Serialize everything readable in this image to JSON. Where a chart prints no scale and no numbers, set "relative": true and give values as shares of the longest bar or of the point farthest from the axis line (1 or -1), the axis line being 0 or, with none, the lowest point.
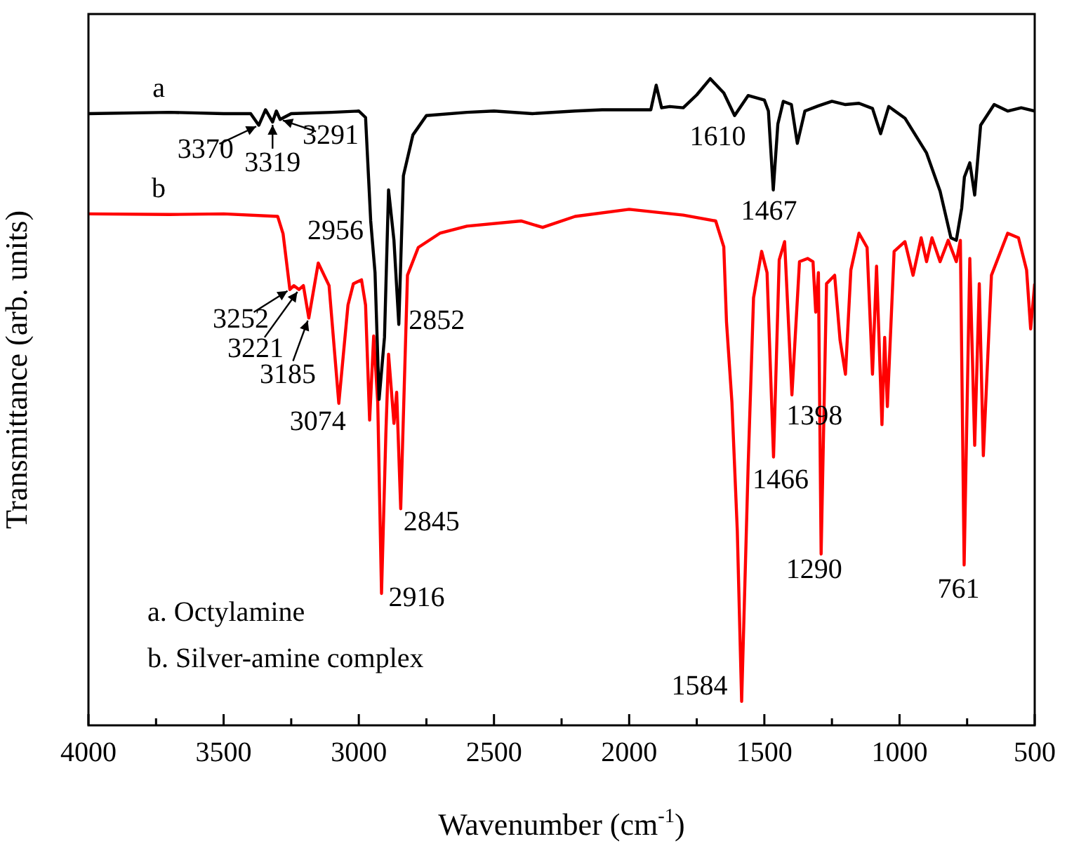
{
  "chart_data": {
    "type": "line",
    "xlabel": "Wavenumber (cm$^{-1}$)",
    "ylabel": "Transmittance (arb. units)",
    "relative": true,
    "xlim": [
      4000,
      500
    ],
    "xticks": [
      4000,
      {
        "value": 3750,
        "label": null
      },
      3500,
      {
        "value": 3250,
        "label": null
      },
      3000,
      {
        "value": 2750,
        "label": null
      },
      2500,
      {
        "value": 2250,
        "label": null
      },
      2000,
      {
        "value": 1750,
        "label": null
      },
      1500,
      {
        "value": 1250,
        "label": null
      },
      1000,
      {
        "value": 750,
        "label": null
      },
      500
    ],
    "grid": false,
    "legend": false,
    "marker": "none",
    "line_style": "solid",
    "series": [
      {
        "name": "a",
        "color": "#000000",
        "x": [
          4000,
          3700,
          3500,
          3400,
          3370,
          3345,
          3319,
          3305,
          3291,
          3250,
          3100,
          3000,
          2975,
          2956,
          2940,
          2925,
          2905,
          2890,
          2870,
          2852,
          2835,
          2800,
          2750,
          2600,
          2500,
          2358,
          2200,
          2100,
          1950,
          1920,
          1900,
          1880,
          1850,
          1800,
          1750,
          1700,
          1650,
          1610,
          1560,
          1500,
          1485,
          1467,
          1450,
          1430,
          1400,
          1378,
          1350,
          1300,
          1250,
          1200,
          1150,
          1100,
          1070,
          1040,
          980,
          900,
          850,
          810,
          790,
          770,
          760,
          740,
          722,
          700,
          650,
          600,
          550,
          500
        ],
        "values": [
          0.946,
          0.948,
          0.946,
          0.946,
          0.928,
          0.952,
          0.933,
          0.95,
          0.937,
          0.946,
          0.948,
          0.95,
          0.94,
          0.78,
          0.7,
          0.504,
          0.6,
          0.828,
          0.75,
          0.62,
          0.85,
          0.913,
          0.943,
          0.948,
          0.95,
          0.946,
          0.95,
          0.952,
          0.952,
          0.952,
          0.99,
          0.955,
          0.957,
          0.955,
          0.975,
          1.0,
          0.978,
          0.943,
          0.974,
          0.967,
          0.95,
          0.828,
          0.93,
          0.965,
          0.96,
          0.9,
          0.95,
          0.958,
          0.965,
          0.96,
          0.962,
          0.954,
          0.915,
          0.957,
          0.939,
          0.885,
          0.826,
          0.754,
          0.75,
          0.8,
          0.848,
          0.87,
          0.82,
          0.928,
          0.96,
          0.95,
          0.955,
          0.95
        ]
      },
      {
        "name": "b",
        "color": "#ff0000",
        "x": [
          4000,
          3700,
          3500,
          3300,
          3280,
          3255,
          3240,
          3221,
          3205,
          3185,
          3150,
          3110,
          3074,
          3040,
          3020,
          2990,
          2975,
          2960,
          2945,
          2930,
          2916,
          2900,
          2890,
          2870,
          2860,
          2845,
          2820,
          2780,
          2700,
          2600,
          2400,
          2320,
          2200,
          2000,
          1800,
          1680,
          1650,
          1640,
          1620,
          1600,
          1584,
          1560,
          1540,
          1510,
          1490,
          1466,
          1445,
          1425,
          1398,
          1370,
          1340,
          1320,
          1310,
          1300,
          1290,
          1270,
          1240,
          1220,
          1200,
          1180,
          1150,
          1120,
          1100,
          1085,
          1065,
          1055,
          1045,
          1020,
          980,
          950,
          920,
          900,
          880,
          850,
          820,
          790,
          775,
          761,
          740,
          722,
          705,
          690,
          660,
          600,
          560,
          530,
          515,
          500
        ],
        "values": [
          0.791,
          0.79,
          0.791,
          0.787,
          0.76,
          0.674,
          0.68,
          0.674,
          0.68,
          0.63,
          0.715,
          0.68,
          0.498,
          0.65,
          0.683,
          0.689,
          0.65,
          0.472,
          0.602,
          0.5,
          0.204,
          0.45,
          0.574,
          0.467,
          0.515,
          0.335,
          0.696,
          0.739,
          0.761,
          0.772,
          0.78,
          0.77,
          0.787,
          0.798,
          0.789,
          0.78,
          0.74,
          0.624,
          0.5,
          0.3,
          0.037,
          0.4,
          0.661,
          0.733,
          0.7,
          0.415,
          0.72,
          0.748,
          0.511,
          0.717,
          0.722,
          0.717,
          0.639,
          0.7,
          0.265,
          0.683,
          0.696,
          0.596,
          0.543,
          0.704,
          0.761,
          0.739,
          0.543,
          0.71,
          0.465,
          0.6,
          0.493,
          0.733,
          0.748,
          0.696,
          0.754,
          0.717,
          0.754,
          0.717,
          0.75,
          0.717,
          0.75,
          0.248,
          0.722,
          0.433,
          0.683,
          0.417,
          0.696,
          0.761,
          0.754,
          0.704,
          0.613,
          0.683
        ]
      }
    ],
    "annotations": [
      {
        "text": "3370",
        "x": 3370,
        "y": 0.928
      },
      {
        "text": "3319",
        "x": 3319,
        "y": 0.933
      },
      {
        "text": "3291",
        "x": 3291,
        "y": 0.937
      },
      {
        "text": "1610",
        "x": 1610,
        "y": 0.943
      },
      {
        "text": "1467",
        "x": 1467,
        "y": 0.828
      },
      {
        "text": "2956",
        "x": 2956,
        "y": 0.78
      },
      {
        "text": "2852",
        "x": 2852,
        "y": 0.62
      },
      {
        "text": "3252",
        "x": 3255,
        "y": 0.674
      },
      {
        "text": "3221",
        "x": 3221,
        "y": 0.674
      },
      {
        "text": "3185",
        "x": 3185,
        "y": 0.63
      },
      {
        "text": "3074",
        "x": 3074,
        "y": 0.498
      },
      {
        "text": "2916",
        "x": 2916,
        "y": 0.204
      },
      {
        "text": "2845",
        "x": 2845,
        "y": 0.335
      },
      {
        "text": "1584",
        "x": 1584,
        "y": 0.037
      },
      {
        "text": "1466",
        "x": 1466,
        "y": 0.415
      },
      {
        "text": "1398",
        "x": 1398,
        "y": 0.511
      },
      {
        "text": "1290",
        "x": 1290,
        "y": 0.265
      },
      {
        "text": "761",
        "x": 761,
        "y": 0.248
      },
      "a. Octylamine",
      "b. Silver-amine complex"
    ]
  }
}
